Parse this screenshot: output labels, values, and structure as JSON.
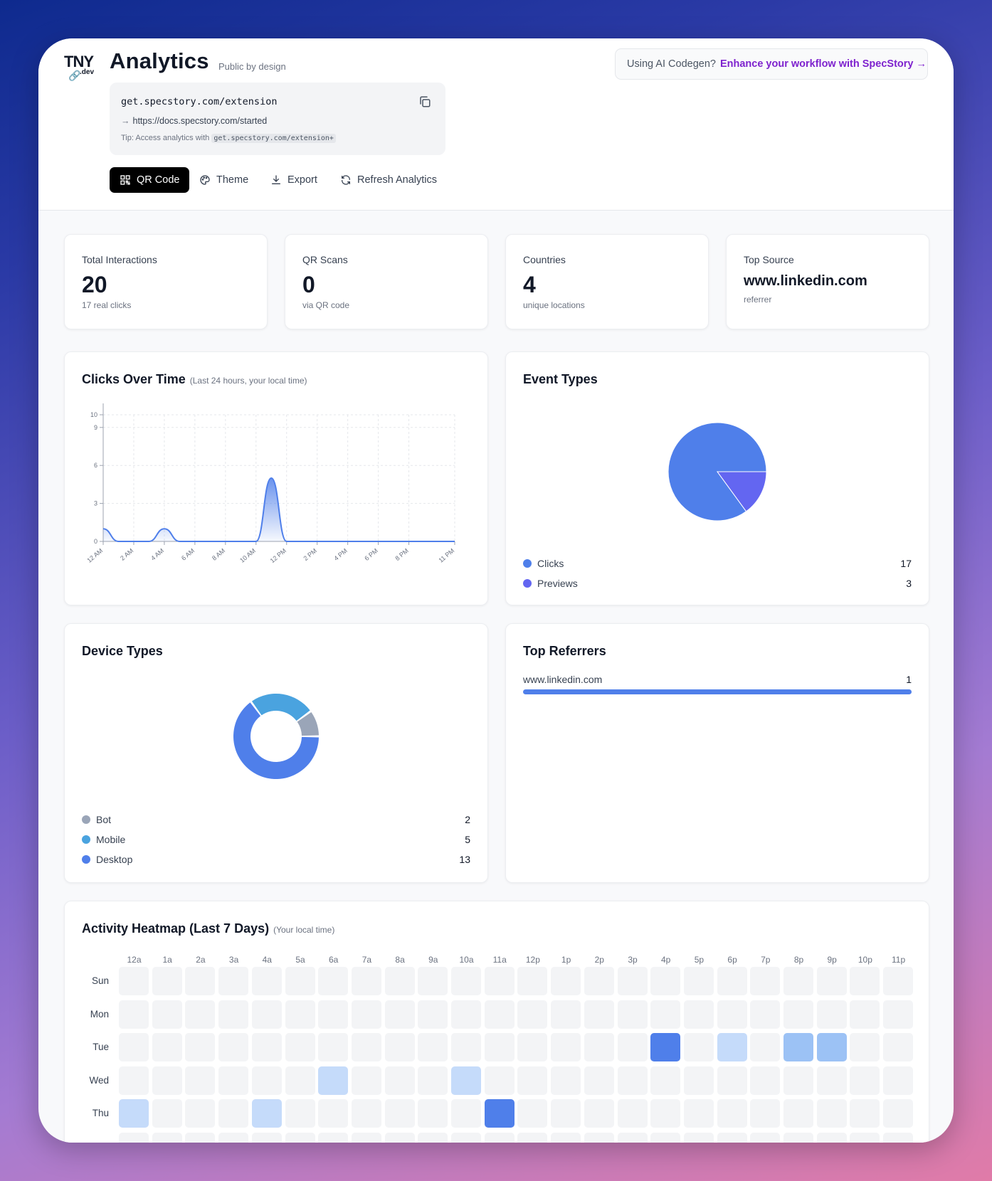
{
  "header": {
    "logo_text": "TNY",
    "logo_sub": ".dev",
    "title": "Analytics",
    "subtitle": "Public by design",
    "promo_prefix": "Using AI Codegen?",
    "promo_link": "Enhance your workflow with SpecStory →",
    "short_url": "get.specstory.com/extension",
    "destination_url": "https://docs.specstory.com/started",
    "tip_prefix": "Tip: Access analytics with",
    "tip_code": "get.specstory.com/extension+",
    "buttons": {
      "qr": "QR Code",
      "theme": "Theme",
      "export": "Export",
      "refresh": "Refresh Analytics"
    }
  },
  "stats": [
    {
      "label": "Total Interactions",
      "value": "20",
      "sub": "17 real clicks"
    },
    {
      "label": "QR Scans",
      "value": "0",
      "sub": "via QR code"
    },
    {
      "label": "Countries",
      "value": "4",
      "sub": "unique locations"
    },
    {
      "label": "Top Source",
      "value": "www.linkedin.com",
      "sub": "referrer"
    }
  ],
  "clicks_card": {
    "title": "Clicks Over Time",
    "note": "(Last 24 hours, your local time)"
  },
  "events_card": {
    "title": "Event Types"
  },
  "devices_card": {
    "title": "Device Types"
  },
  "referrers_card": {
    "title": "Top Referrers",
    "items": [
      {
        "name": "www.linkedin.com",
        "count": "1"
      }
    ]
  },
  "heatmap_card": {
    "title": "Activity Heatmap (Last 7 Days)",
    "note": "(Your local time)"
  },
  "colors": {
    "accent": "#4f7fea",
    "previews": "#6366f1",
    "mobile": "#4aa3df",
    "bot": "#9aa5b8"
  },
  "chart_data": [
    {
      "type": "area",
      "title": "Clicks Over Time",
      "x": [
        "12 AM",
        "1 AM",
        "2 AM",
        "3 AM",
        "4 AM",
        "5 AM",
        "6 AM",
        "7 AM",
        "8 AM",
        "9 AM",
        "10 AM",
        "11 AM",
        "12 PM",
        "1 PM",
        "2 PM",
        "3 PM",
        "4 PM",
        "5 PM",
        "6 PM",
        "7 PM",
        "8 PM",
        "9 PM",
        "10 PM",
        "11 PM"
      ],
      "x_tick_labels": [
        "12 AM",
        "2 AM",
        "4 AM",
        "6 AM",
        "8 AM",
        "10 AM",
        "12 PM",
        "2 PM",
        "4 PM",
        "6 PM",
        "8 PM",
        "11 PM"
      ],
      "series": [
        {
          "values": [
            1,
            0,
            0,
            0,
            1,
            0,
            0,
            0,
            0,
            0,
            0,
            5,
            0,
            0,
            0,
            0,
            0,
            0,
            0,
            0,
            0,
            0,
            0,
            0
          ]
        }
      ],
      "y_ticks": [
        0,
        3,
        6,
        9,
        10
      ],
      "ylim": [
        0,
        10
      ],
      "grid": true
    },
    {
      "type": "pie",
      "title": "Event Types",
      "slices": [
        {
          "label": "Clicks",
          "value": 17,
          "color": "#4f7fea"
        },
        {
          "label": "Previews",
          "value": 3,
          "color": "#6366f1"
        }
      ]
    },
    {
      "type": "pie",
      "donut": true,
      "title": "Device Types",
      "slices": [
        {
          "label": "Bot",
          "value": 2,
          "color": "#9aa5b8"
        },
        {
          "label": "Mobile",
          "value": 5,
          "color": "#4aa3df"
        },
        {
          "label": "Desktop",
          "value": 13,
          "color": "#4f7fea"
        }
      ]
    },
    {
      "type": "heatmap",
      "title": "Activity Heatmap (Last 7 Days)",
      "hours": [
        "12a",
        "1a",
        "2a",
        "3a",
        "4a",
        "5a",
        "6a",
        "7a",
        "8a",
        "9a",
        "10a",
        "11a",
        "12p",
        "1p",
        "2p",
        "3p",
        "4p",
        "5p",
        "6p",
        "7p",
        "8p",
        "9p",
        "10p",
        "11p"
      ],
      "days": [
        "Sun",
        "Mon",
        "Tue",
        "Wed",
        "Thu"
      ],
      "values": [
        [
          0,
          0,
          0,
          0,
          0,
          0,
          0,
          0,
          0,
          0,
          0,
          0,
          0,
          0,
          0,
          0,
          0,
          0,
          0,
          0,
          0,
          0,
          0,
          0
        ],
        [
          0,
          0,
          0,
          0,
          0,
          0,
          0,
          0,
          0,
          0,
          0,
          0,
          0,
          0,
          0,
          0,
          0,
          0,
          0,
          0,
          0,
          0,
          0,
          0
        ],
        [
          0,
          0,
          0,
          0,
          0,
          0,
          0,
          0,
          0,
          0,
          0,
          0,
          0,
          0,
          0,
          0,
          3,
          0,
          1,
          0,
          2,
          2,
          0,
          0
        ],
        [
          0,
          0,
          0,
          0,
          0,
          0,
          1,
          0,
          0,
          0,
          1,
          0,
          0,
          0,
          0,
          0,
          0,
          0,
          0,
          0,
          0,
          0,
          0,
          0
        ],
        [
          1,
          0,
          0,
          0,
          1,
          0,
          0,
          0,
          0,
          0,
          0,
          3,
          0,
          0,
          0,
          0,
          0,
          0,
          0,
          0,
          0,
          0,
          0,
          0
        ]
      ]
    }
  ]
}
